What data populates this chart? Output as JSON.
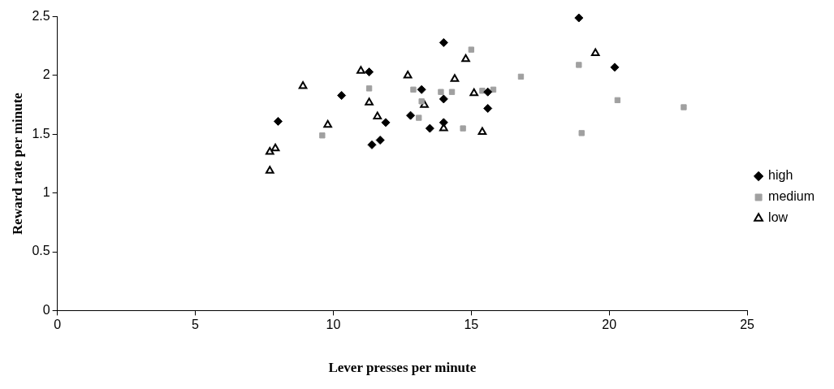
{
  "chart_data": {
    "type": "scatter",
    "xlabel": "Lever presses per minute",
    "ylabel": "Reward rate per minute",
    "xlim": [
      0,
      25
    ],
    "xticks": [
      0,
      5,
      10,
      15,
      20,
      25
    ],
    "ylim": [
      0,
      2.5
    ],
    "yticks": [
      0,
      0.5,
      1,
      1.5,
      2,
      2.5
    ],
    "grid": false,
    "legend": "right",
    "series": [
      {
        "name": "high",
        "color": "#000000",
        "marker": "diamond",
        "x": [
          8.0,
          10.3,
          11.3,
          11.4,
          11.7,
          11.9,
          12.8,
          13.2,
          13.5,
          14.0,
          14.0,
          14.0,
          15.6,
          15.6,
          18.9,
          20.2
        ],
        "values": [
          1.61,
          1.83,
          2.03,
          1.41,
          1.45,
          1.6,
          1.66,
          1.88,
          1.55,
          1.8,
          1.6,
          2.28,
          1.72,
          1.86,
          2.49,
          2.07
        ]
      },
      {
        "name": "medium",
        "color": "#a0a0a0",
        "marker": "square",
        "x": [
          9.6,
          11.3,
          12.9,
          13.1,
          13.2,
          13.9,
          14.3,
          14.7,
          15.0,
          15.4,
          15.8,
          16.8,
          18.9,
          19.0,
          20.3,
          22.7
        ],
        "values": [
          1.49,
          1.89,
          1.88,
          1.64,
          1.78,
          1.86,
          1.86,
          1.55,
          2.22,
          1.87,
          1.88,
          1.99,
          2.09,
          1.51,
          1.79,
          1.73
        ]
      },
      {
        "name": "low",
        "color": "#000000",
        "marker": "triangle",
        "x": [
          7.7,
          7.7,
          7.9,
          8.9,
          9.8,
          11.0,
          11.3,
          11.6,
          12.7,
          13.3,
          14.0,
          14.4,
          14.8,
          15.1,
          15.4,
          19.5
        ],
        "values": [
          1.35,
          1.19,
          1.38,
          1.91,
          1.58,
          2.04,
          1.77,
          1.65,
          2.0,
          1.75,
          1.55,
          1.97,
          2.14,
          1.85,
          1.52,
          2.19
        ]
      }
    ]
  }
}
